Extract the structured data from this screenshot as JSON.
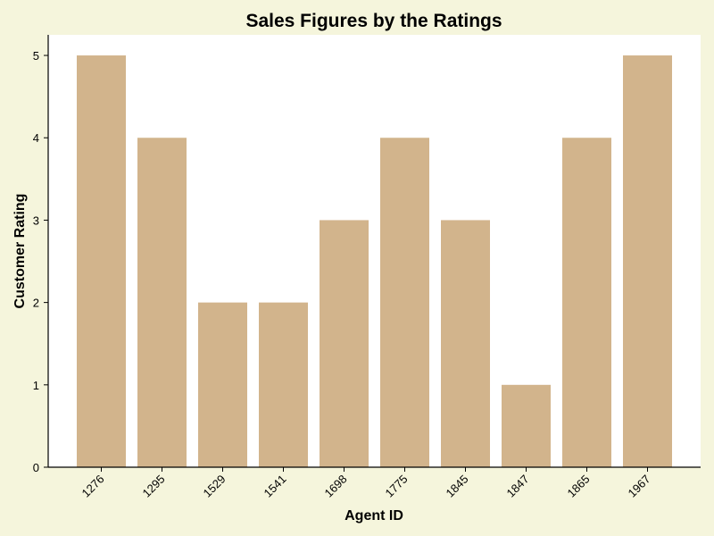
{
  "chart_data": {
    "type": "bar",
    "title": "Sales Figures by the Ratings",
    "xlabel": "Agent ID",
    "ylabel": "Customer Rating",
    "categories": [
      "1276",
      "1295",
      "1529",
      "1541",
      "1698",
      "1775",
      "1845",
      "1847",
      "1865",
      "1967"
    ],
    "values": [
      5,
      4,
      2,
      2,
      3,
      4,
      3,
      1,
      4,
      5
    ],
    "ylim": [
      0,
      5.25
    ],
    "yticks": [
      0,
      1,
      2,
      3,
      4,
      5
    ],
    "grid": false,
    "bar_color": "#d2b48c",
    "plot_background": "#ffffff",
    "figure_background": "#f5f5dc"
  }
}
